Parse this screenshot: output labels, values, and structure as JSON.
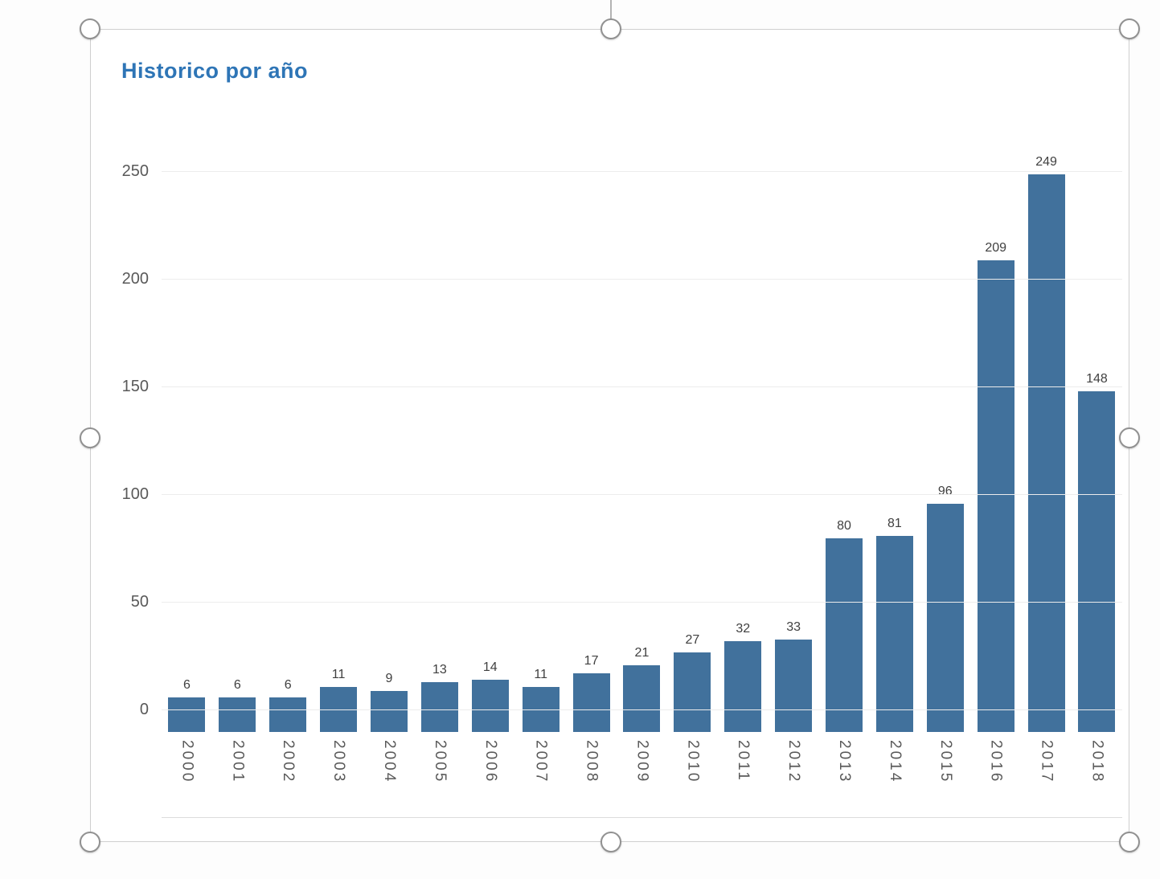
{
  "chart_data": {
    "type": "bar",
    "title": "Historico por año",
    "categories": [
      "2000",
      "2001",
      "2002",
      "2003",
      "2004",
      "2005",
      "2006",
      "2007",
      "2008",
      "2009",
      "2010",
      "2011",
      "2012",
      "2013",
      "2014",
      "2015",
      "2016",
      "2017",
      "2018"
    ],
    "values": [
      6,
      6,
      6,
      11,
      9,
      13,
      14,
      11,
      17,
      21,
      27,
      32,
      33,
      80,
      81,
      96,
      209,
      249,
      148
    ],
    "yticks": [
      0,
      50,
      100,
      150,
      200,
      250
    ],
    "ylim": [
      0,
      250
    ],
    "xlabel": "",
    "ylabel": "",
    "grid": true,
    "legend_position": "none",
    "bar_color": "#41719C",
    "title_color": "#2E75B6",
    "axis_text_color": "#595959",
    "value_label_color": "#404040"
  },
  "selection": {
    "handles": [
      "top-left",
      "top-center",
      "top-right",
      "middle-left",
      "middle-right",
      "bottom-left",
      "bottom-center",
      "bottom-right"
    ]
  }
}
